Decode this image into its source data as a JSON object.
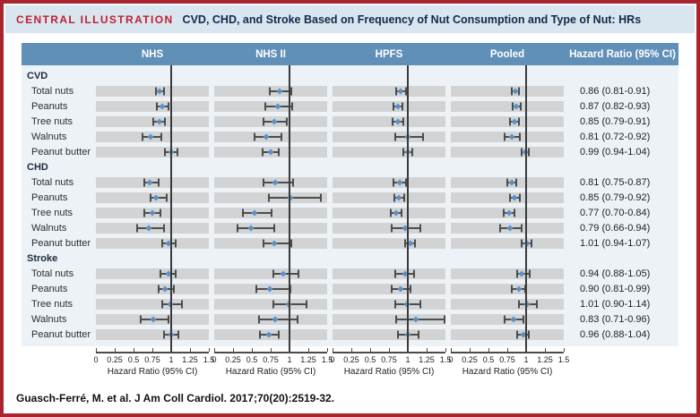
{
  "title": {
    "label": "CENTRAL ILLUSTRATION",
    "text": "CVD, CHD, and Stroke Based on Frequency of Nut Consumption and Type of Nut: HRs"
  },
  "footer": {
    "citation": "Guasch-Ferré, M. et al. J Am Coll Cardiol. 2017;70(20):2519-32."
  },
  "colors": {
    "border_red": "#aa2430",
    "accent_red": "#c01f2f",
    "title_navy": "#13294b",
    "header_blue": "#6090b8",
    "panel_blue": "#edf2f7",
    "band_gray": "#d2d3d4",
    "marker_blue": "#5d90c4",
    "whisker_gray": "#4c4c4c"
  },
  "chart_data": {
    "type": "forest",
    "columns": [
      "NHS",
      "NHS II",
      "HPFS",
      "Pooled"
    ],
    "series_keys": [
      "nhs",
      "nhs2",
      "hpfs",
      "pooled"
    ],
    "hr_header": "Hazard Ratio (95% CI)",
    "axis": {
      "range": [
        0,
        1.5
      ],
      "tick_values": [
        0,
        0.25,
        0.5,
        0.75,
        1,
        1.25,
        1.5
      ],
      "ticks": [
        "0",
        "0.25",
        "0.5",
        "0.75",
        "1",
        "1.25",
        "1.5"
      ],
      "label": "Hazard Ratio (95% CI)",
      "ref_line": 1
    },
    "groups": [
      {
        "name": "CVD",
        "rows": [
          {
            "label": "Total nuts",
            "hr": "0.86 (0.81-0.91)",
            "nhs": [
              0.8,
              0.84,
              0.91
            ],
            "nhs2": [
              0.74,
              0.87,
              1.02
            ],
            "hpfs": [
              0.84,
              0.91,
              0.98
            ],
            "pooled": [
              0.81,
              0.86,
              0.91
            ]
          },
          {
            "label": "Peanuts",
            "hr": "0.87 (0.82-0.93)",
            "nhs": [
              0.81,
              0.88,
              0.97
            ],
            "nhs2": [
              0.68,
              0.84,
              1.04
            ],
            "hpfs": [
              0.81,
              0.87,
              0.93
            ],
            "pooled": [
              0.82,
              0.87,
              0.93
            ]
          },
          {
            "label": "Tree nuts",
            "hr": "0.85 (0.79-0.91)",
            "nhs": [
              0.76,
              0.84,
              0.92
            ],
            "nhs2": [
              0.66,
              0.8,
              0.96
            ],
            "hpfs": [
              0.8,
              0.87,
              0.94
            ],
            "pooled": [
              0.79,
              0.85,
              0.91
            ]
          },
          {
            "label": "Walnuts",
            "hr": "0.81 (0.72-0.92)",
            "nhs": [
              0.62,
              0.73,
              0.87
            ],
            "nhs2": [
              0.54,
              0.69,
              0.89
            ],
            "hpfs": [
              0.83,
              1.0,
              1.2
            ],
            "pooled": [
              0.72,
              0.81,
              0.92
            ]
          },
          {
            "label": "Peanut butter",
            "hr": "0.99 (0.94-1.04)",
            "nhs": [
              0.92,
              1.0,
              1.08
            ],
            "nhs2": [
              0.64,
              0.75,
              0.86
            ],
            "hpfs": [
              0.94,
              1.0,
              1.06
            ],
            "pooled": [
              0.94,
              0.99,
              1.04
            ]
          }
        ]
      },
      {
        "name": "CHD",
        "rows": [
          {
            "label": "Total nuts",
            "hr": "0.81 (0.75-0.87)",
            "nhs": [
              0.64,
              0.72,
              0.83
            ],
            "nhs2": [
              0.65,
              0.81,
              1.05
            ],
            "hpfs": [
              0.81,
              0.89,
              0.98
            ],
            "pooled": [
              0.75,
              0.81,
              0.87
            ]
          },
          {
            "label": "Peanuts",
            "hr": "0.85 (0.79-0.92)",
            "nhs": [
              0.73,
              0.8,
              0.94
            ],
            "nhs2": [
              0.73,
              1.01,
              1.42
            ],
            "hpfs": [
              0.82,
              0.88,
              0.95
            ],
            "pooled": [
              0.79,
              0.85,
              0.92
            ]
          },
          {
            "label": "Tree nuts",
            "hr": "0.77 (0.70-0.84)",
            "nhs": [
              0.64,
              0.75,
              0.86
            ],
            "nhs2": [
              0.38,
              0.54,
              0.76
            ],
            "hpfs": [
              0.77,
              0.84,
              0.92
            ],
            "pooled": [
              0.7,
              0.77,
              0.84
            ]
          },
          {
            "label": "Walnuts",
            "hr": "0.79 (0.66-0.94)",
            "nhs": [
              0.55,
              0.7,
              0.9
            ],
            "nhs2": [
              0.31,
              0.49,
              0.8
            ],
            "hpfs": [
              0.79,
              0.96,
              1.17
            ],
            "pooled": [
              0.66,
              0.79,
              0.94
            ]
          },
          {
            "label": "Peanut butter",
            "hr": "1.01 (0.94-1.07)",
            "nhs": [
              0.88,
              0.97,
              1.06
            ],
            "nhs2": [
              0.66,
              0.8,
              1.02
            ],
            "hpfs": [
              0.96,
              1.04,
              1.1
            ],
            "pooled": [
              0.94,
              1.01,
              1.07
            ]
          }
        ]
      },
      {
        "name": "Stroke",
        "rows": [
          {
            "label": "Total nuts",
            "hr": "0.94 (0.88-1.05)",
            "nhs": [
              0.86,
              0.96,
              1.06
            ],
            "nhs2": [
              0.78,
              0.92,
              1.12
            ],
            "hpfs": [
              0.83,
              0.96,
              1.08
            ],
            "pooled": [
              0.88,
              0.94,
              1.05
            ]
          },
          {
            "label": "Peanuts",
            "hr": "0.90 (0.81-0.99)",
            "nhs": [
              0.83,
              0.92,
              1.03
            ],
            "nhs2": [
              0.56,
              0.74,
              1.01
            ],
            "hpfs": [
              0.78,
              0.9,
              1.04
            ],
            "pooled": [
              0.81,
              0.9,
              0.99
            ]
          },
          {
            "label": "Tree nuts",
            "hr": "1.01 (0.90-1.14)",
            "nhs": [
              0.88,
              0.99,
              1.14
            ],
            "nhs2": [
              0.79,
              0.99,
              1.23
            ],
            "hpfs": [
              0.83,
              0.99,
              1.17
            ],
            "pooled": [
              0.9,
              1.01,
              1.14
            ]
          },
          {
            "label": "Walnuts",
            "hr": "0.83 (0.71-0.96)",
            "nhs": [
              0.59,
              0.76,
              0.96
            ],
            "nhs2": [
              0.6,
              0.81,
              1.11
            ],
            "hpfs": [
              0.84,
              1.11,
              1.49
            ],
            "pooled": [
              0.71,
              0.83,
              0.96
            ]
          },
          {
            "label": "Peanut butter",
            "hr": "0.96 (0.88-1.04)",
            "nhs": [
              0.9,
              1.0,
              1.1
            ],
            "nhs2": [
              0.61,
              0.73,
              0.86
            ],
            "hpfs": [
              0.87,
              1.0,
              1.14
            ],
            "pooled": [
              0.88,
              0.96,
              1.04
            ]
          }
        ]
      }
    ]
  }
}
